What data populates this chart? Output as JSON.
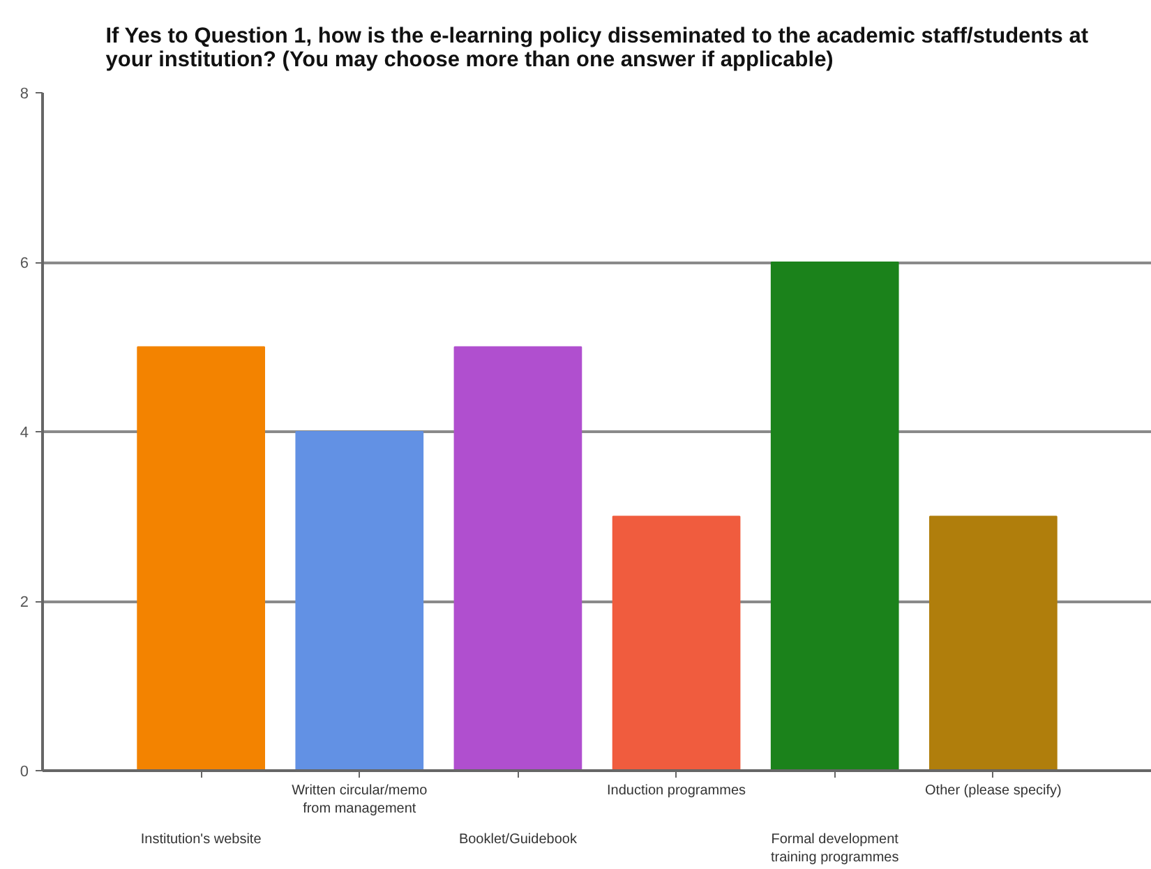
{
  "chart_data": {
    "type": "bar",
    "title": "If Yes to Question 1, how is the e-learning policy disseminated to the academic staff/students at your institution? (You may choose more than one answer if applicable)",
    "categories": [
      "Institution's website",
      "Written circular/memo from management",
      "Booklet/Guidebook",
      "Induction programmes",
      "Formal development training programmes",
      "Other (please specify)"
    ],
    "values": [
      5,
      4,
      5,
      3,
      6,
      3
    ],
    "colors": [
      "#f38300",
      "#6291e4",
      "#b04fcf",
      "#f05c3e",
      "#1b821b",
      "#b07e0c"
    ],
    "ylim": [
      0,
      8
    ],
    "yticks": [
      0,
      2,
      4,
      6,
      8
    ],
    "grid": "y"
  }
}
